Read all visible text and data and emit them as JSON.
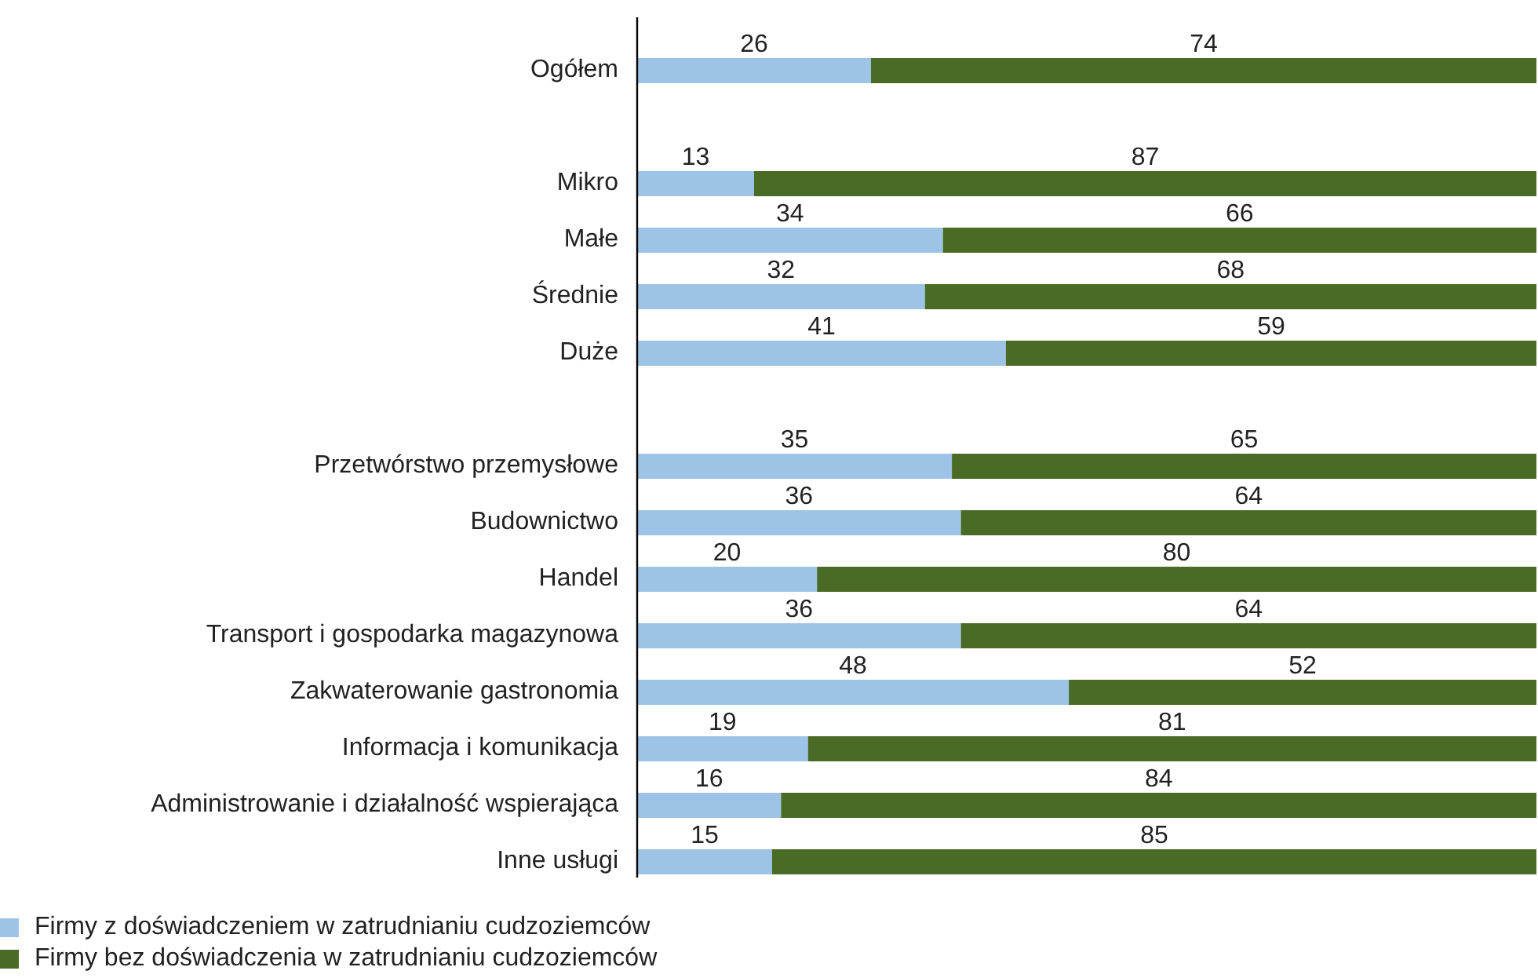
{
  "chart_data": {
    "type": "bar",
    "orientation": "horizontal",
    "stacked": true,
    "data_labels": true,
    "legend": "bottom left",
    "xlim": [
      0,
      100
    ],
    "categories": [
      "Ogółem",
      null,
      "Mikro",
      "Małe",
      "Średnie",
      "Duże",
      null,
      "Przetwórstwo przemysłowe",
      "Budownictwo",
      "Handel",
      "Transport i gospodarka magazynowa",
      "Zakwaterowanie gastronomia",
      "Informacja i komunikacja",
      "Administrowanie i działalność wspierająca",
      "Inne usługi"
    ],
    "series": [
      {
        "name": "Firmy z doświadczeniem w zatrudnianiu cudzoziemców",
        "color": "#9dc3e6",
        "values": [
          26,
          null,
          13,
          34,
          32,
          41,
          null,
          35,
          36,
          20,
          36,
          48,
          19,
          16,
          15
        ]
      },
      {
        "name": "Firmy bez doświadczenia w zatrudnianiu cudzoziemców",
        "color": "#4a6b25",
        "values": [
          74,
          null,
          87,
          66,
          68,
          59,
          null,
          65,
          64,
          80,
          64,
          52,
          81,
          84,
          85
        ]
      }
    ]
  }
}
